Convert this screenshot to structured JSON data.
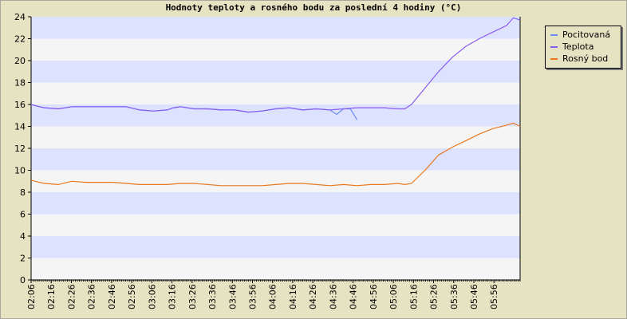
{
  "chart_data": {
    "type": "line",
    "title": "Hodnoty teploty a rosného bodu za poslední 4 hodiny (°C)",
    "xlabel": "",
    "ylabel": "",
    "ylim": [
      0,
      24
    ],
    "yticks": [
      0,
      2,
      4,
      6,
      8,
      10,
      12,
      14,
      16,
      18,
      20,
      22,
      24
    ],
    "xticks": [
      "02:06",
      "02:16",
      "02:26",
      "02:36",
      "02:46",
      "02:56",
      "03:06",
      "03:16",
      "03:26",
      "03:36",
      "03:46",
      "03:56",
      "04:06",
      "04:16",
      "04:26",
      "04:36",
      "04:46",
      "04:56",
      "05:06",
      "05:16",
      "05:26",
      "05:36",
      "05:46",
      "05:56"
    ],
    "grid": "horizontal alternating bands",
    "legend_position": "top-right",
    "colors": {
      "background": "#e6e3c2",
      "band_light": "#f5f5f5",
      "band_blue": "#dde3ff",
      "pocitovana": "#6e8cf0",
      "teplota": "#8a5cf0",
      "rosny_bod": "#e8781e"
    },
    "series": [
      {
        "name": "Pocitovaná",
        "x": [
          0,
          6,
          10,
          20,
          30,
          40,
          50,
          60,
          70,
          80,
          90,
          100,
          105,
          110,
          120,
          130,
          140,
          150,
          160,
          170,
          180,
          190,
          200,
          210,
          220,
          225,
          230,
          235,
          240
        ],
        "values": [
          16.0,
          15.8,
          15.7,
          15.6,
          15.8,
          15.8,
          15.8,
          15.8,
          15.8,
          15.5,
          15.4,
          15.5,
          15.7,
          15.8,
          15.6,
          15.6,
          15.5,
          15.5,
          15.3,
          15.4,
          15.6,
          15.7,
          15.5,
          15.6,
          15.5,
          15.1,
          15.6,
          15.6,
          14.6
        ]
      },
      {
        "name": "Teplota",
        "x": [
          0,
          6,
          10,
          20,
          30,
          40,
          50,
          60,
          70,
          80,
          90,
          100,
          105,
          110,
          120,
          130,
          140,
          150,
          160,
          170,
          180,
          190,
          200,
          210,
          220,
          230,
          240,
          250,
          260,
          270,
          275,
          280,
          290,
          300,
          310,
          320,
          330,
          340,
          350,
          355,
          360
        ],
        "values": [
          16.0,
          15.8,
          15.7,
          15.6,
          15.8,
          15.8,
          15.8,
          15.8,
          15.8,
          15.5,
          15.4,
          15.5,
          15.7,
          15.8,
          15.6,
          15.6,
          15.5,
          15.5,
          15.3,
          15.4,
          15.6,
          15.7,
          15.5,
          15.6,
          15.5,
          15.6,
          15.7,
          15.7,
          15.7,
          15.6,
          15.6,
          16.0,
          17.5,
          19.0,
          20.3,
          21.3,
          22.0,
          22.6,
          23.2,
          23.9,
          23.7
        ]
      },
      {
        "name": "Rosný bod",
        "x": [
          0,
          6,
          10,
          20,
          30,
          40,
          50,
          60,
          70,
          80,
          90,
          100,
          110,
          120,
          130,
          140,
          150,
          160,
          170,
          180,
          190,
          200,
          210,
          220,
          230,
          240,
          250,
          260,
          270,
          275,
          280,
          290,
          300,
          310,
          320,
          330,
          340,
          350,
          355,
          360
        ],
        "values": [
          9.1,
          8.9,
          8.8,
          8.7,
          9.0,
          8.9,
          8.9,
          8.9,
          8.8,
          8.7,
          8.7,
          8.7,
          8.8,
          8.8,
          8.7,
          8.6,
          8.6,
          8.6,
          8.6,
          8.7,
          8.8,
          8.8,
          8.7,
          8.6,
          8.7,
          8.6,
          8.7,
          8.7,
          8.8,
          8.7,
          8.8,
          10.0,
          11.4,
          12.1,
          12.7,
          13.3,
          13.8,
          14.1,
          14.3,
          14.0
        ]
      }
    ]
  }
}
